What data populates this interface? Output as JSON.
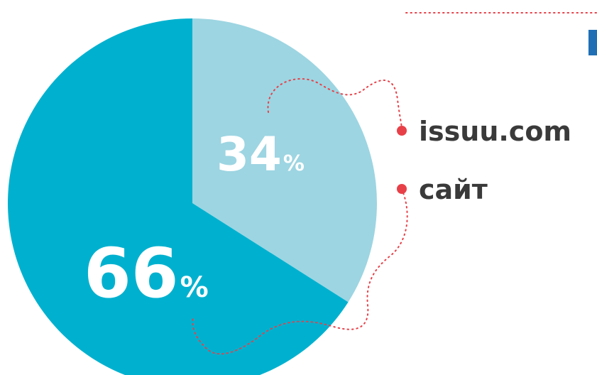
{
  "chart_data": {
    "type": "pie",
    "categories": [
      "issuu.com",
      "сайт"
    ],
    "values": [
      34,
      66
    ],
    "value_suffix": "%",
    "colors": [
      "#9dd5e2",
      "#00b1cf"
    ],
    "start_angle_deg": 0,
    "direction": "clockwise",
    "legend_position": "right",
    "marker_color": "#e84048"
  }
}
